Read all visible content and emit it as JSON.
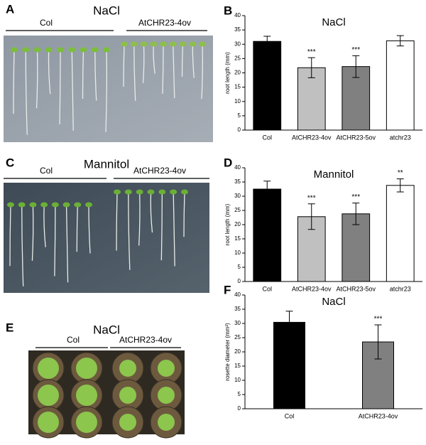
{
  "panels": [
    {
      "letter": "A",
      "title": "NaCl",
      "groups": [
        "Col",
        "AtCHR23-4ov"
      ]
    },
    {
      "letter": "C",
      "title": "Mannitol",
      "groups": [
        "Col",
        "AtCHR23-4ov"
      ]
    },
    {
      "letter": "E",
      "title": "NaCl",
      "groups": [
        "Col",
        "AtCHR23-4ov"
      ]
    }
  ],
  "chart_data": [
    {
      "type": "bar",
      "panel": "B",
      "title": "NaCl",
      "ylabel": "root length (mm)",
      "categories": [
        "Col",
        "AtCHR23-4ov",
        "AtCHR23-5ov",
        "atchr23"
      ],
      "values": [
        31,
        21.8,
        22.2,
        31.2
      ],
      "errors": [
        1.8,
        3.5,
        3.8,
        1.8
      ],
      "significance": [
        null,
        "***",
        "***",
        null
      ],
      "colors": [
        "#000000",
        "#c0c0c0",
        "#808080",
        "#ffffff"
      ],
      "ylim": [
        0,
        40
      ],
      "yticks": [
        0,
        5,
        10,
        15,
        20,
        25,
        30,
        35,
        40
      ]
    },
    {
      "type": "bar",
      "panel": "D",
      "title": "Mannitol",
      "ylabel": "root length (mm)",
      "categories": [
        "Col",
        "AtCHR23-4ov",
        "AtCHR23-5ov",
        "atchr23"
      ],
      "values": [
        32.5,
        22.8,
        23.8,
        33.8
      ],
      "errors": [
        2.8,
        4.5,
        3.8,
        2.3
      ],
      "significance": [
        null,
        "***",
        "***",
        "**"
      ],
      "colors": [
        "#000000",
        "#c0c0c0",
        "#808080",
        "#ffffff"
      ],
      "ylim": [
        0,
        40
      ],
      "yticks": [
        0,
        5,
        10,
        15,
        20,
        25,
        30,
        35,
        40
      ]
    },
    {
      "type": "bar",
      "panel": "F",
      "title": "NaCl",
      "ylabel": "rosette diameter (mm²)",
      "categories": [
        "Col",
        "AtCHR23-4ov"
      ],
      "values": [
        30.4,
        23.5
      ],
      "errors": [
        3.9,
        6
      ],
      "significance": [
        null,
        "***"
      ],
      "colors": [
        "#000000",
        "#808080"
      ],
      "ylim": [
        0,
        40
      ],
      "yticks": [
        0,
        5,
        10,
        15,
        20,
        25,
        30,
        35,
        40
      ]
    }
  ]
}
